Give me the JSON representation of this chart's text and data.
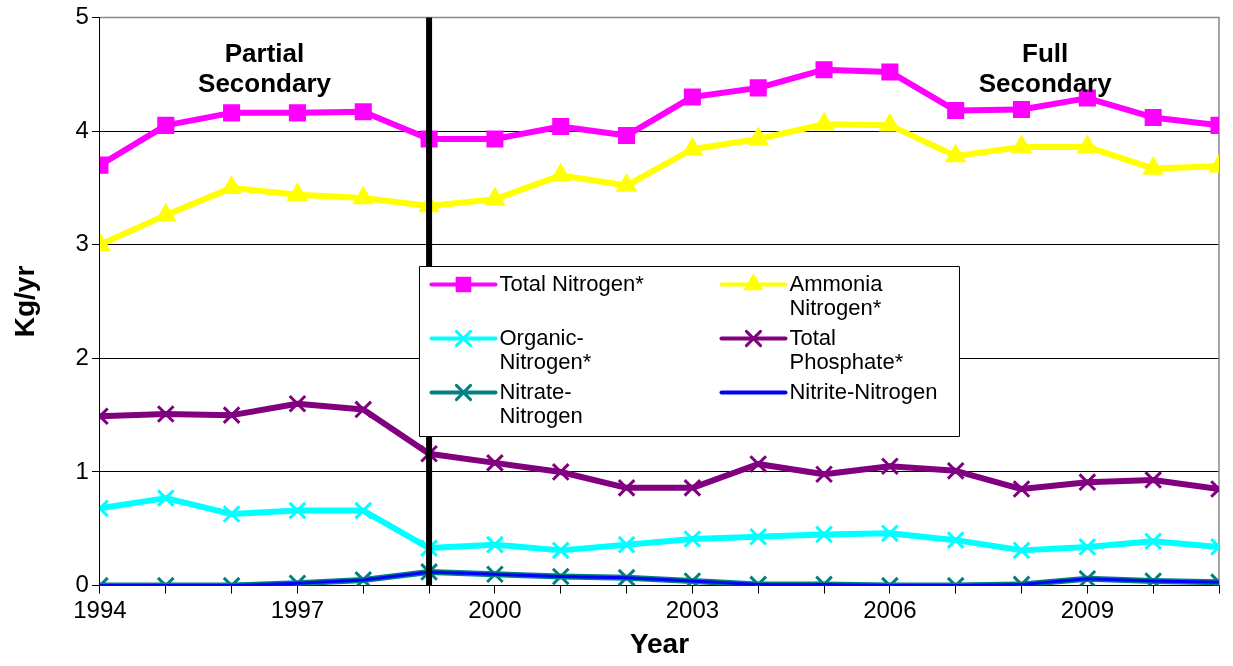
{
  "chart_data": {
    "type": "line",
    "xlabel": "Year",
    "ylabel": "Kg/yr",
    "x": [
      1994,
      1995,
      1996,
      1997,
      1998,
      1999,
      2000,
      2001,
      2002,
      2003,
      2004,
      2005,
      2006,
      2007,
      2008,
      2009,
      2010,
      2011
    ],
    "xlim": [
      1994,
      2011
    ],
    "xticks": [
      1994,
      {
        "value": 1995,
        "label": null
      },
      {
        "value": 1996,
        "label": null
      },
      1997,
      {
        "value": 1998,
        "label": null
      },
      {
        "value": 1999,
        "label": null
      },
      2000,
      {
        "value": 2001,
        "label": null
      },
      {
        "value": 2002,
        "label": null
      },
      2003,
      {
        "value": 2004,
        "label": null
      },
      {
        "value": 2005,
        "label": null
      },
      2006,
      {
        "value": 2007,
        "label": null
      },
      {
        "value": 2008,
        "label": null
      },
      2009,
      {
        "value": 2010,
        "label": null
      },
      {
        "value": 2011,
        "label": null
      }
    ],
    "ylim": [
      0,
      5
    ],
    "yticks": [
      0,
      1,
      2,
      3,
      4,
      5
    ],
    "grid": "y",
    "legend": "center",
    "series": [
      {
        "name": "Total Nitrogen*",
        "color": "#ff00ff",
        "marker": "square",
        "values": [
          3.7,
          4.05,
          4.16,
          4.16,
          4.17,
          3.93,
          3.93,
          4.04,
          3.96,
          4.3,
          4.38,
          4.54,
          4.52,
          4.18,
          4.19,
          4.29,
          4.12,
          4.05
        ]
      },
      {
        "name": "Ammonia Nitrogen*",
        "color": "#ffff00",
        "marker": "triangle",
        "values": [
          3.0,
          3.26,
          3.5,
          3.44,
          3.41,
          3.34,
          3.4,
          3.61,
          3.52,
          3.84,
          3.93,
          4.06,
          4.05,
          3.78,
          3.86,
          3.86,
          3.67,
          3.69
        ]
      },
      {
        "name": "Organic-Nitrogen*",
        "color": "#00ffff",
        "marker": "cross",
        "values": [
          0.68,
          0.77,
          0.63,
          0.66,
          0.66,
          0.33,
          0.36,
          0.31,
          0.36,
          0.41,
          0.43,
          0.45,
          0.46,
          0.4,
          0.31,
          0.34,
          0.39,
          0.34
        ]
      },
      {
        "name": "Total Phosphate*",
        "color": "#800080",
        "marker": "cross",
        "values": [
          1.49,
          1.51,
          1.5,
          1.6,
          1.55,
          1.16,
          1.08,
          1.0,
          0.86,
          0.86,
          1.07,
          0.98,
          1.05,
          1.01,
          0.85,
          0.91,
          0.93,
          0.85
        ]
      },
      {
        "name": "Nitrate-Nitrogen",
        "color": "#008080",
        "marker": "cross",
        "values": [
          0,
          0,
          0,
          0.02,
          0.05,
          0.12,
          0.1,
          0.08,
          0.07,
          0.04,
          0.01,
          0.01,
          0,
          0,
          0.01,
          0.06,
          0.04,
          0.03
        ]
      },
      {
        "name": "Nitrite-Nitrogen",
        "color": "#0000ff",
        "marker": "none",
        "values": [
          0,
          0,
          0,
          0.02,
          0.05,
          0.12,
          0.1,
          0.08,
          0.07,
          0.04,
          0.01,
          0.01,
          0,
          0,
          0.01,
          0.06,
          0.04,
          0.03
        ]
      }
    ],
    "ref_lines": [
      {
        "axis": "x",
        "value": 1999,
        "color": "#000000"
      }
    ],
    "annotations": [
      "Partial Secondary",
      "Full Secondary"
    ]
  }
}
